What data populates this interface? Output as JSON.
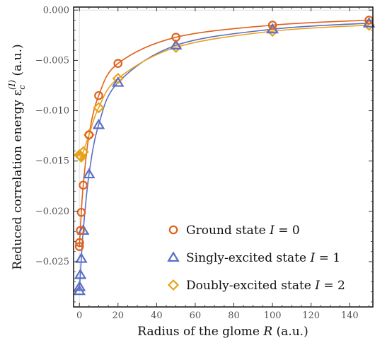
{
  "chart_data": {
    "type": "scatter",
    "title": "",
    "xlabel": "Radius of the glome R (a.u.)",
    "ylabel": "Reduced correlation energy ε_c^(I) (a.u.)",
    "ylabel_parts": {
      "pre": "Reduced correlation energy ε",
      "sub": "c",
      "sup": "(I)",
      "post": " (a.u.)"
    },
    "xlabel_parts": {
      "pre": "Radius of the glome ",
      "var": "R",
      "post": " (a.u.)"
    },
    "xlim": [
      -3,
      152
    ],
    "ylim": [
      -0.0295,
      0.0003
    ],
    "xticks": [
      0,
      20,
      40,
      60,
      80,
      100,
      120,
      140
    ],
    "xtick_labels": [
      "0",
      "20",
      "40",
      "60",
      "80",
      "100",
      "120",
      "140"
    ],
    "yticks": [
      0.0,
      -0.005,
      -0.01,
      -0.015,
      -0.02,
      -0.025
    ],
    "ytick_labels": [
      "0.000",
      "−0.005",
      "−0.010",
      "−0.015",
      "−0.020",
      "−0.025"
    ],
    "grid": true,
    "legend_position": "bottom-right",
    "series": [
      {
        "name": "Ground state I = 0",
        "legend_parts": {
          "pre": "Ground state ",
          "var": "I",
          "post": " = 0"
        },
        "color": "#e0621b",
        "marker": "circle",
        "x": [
          0.01,
          0.1,
          0.5,
          1,
          2,
          5,
          10,
          20,
          50,
          100,
          150
        ],
        "y": [
          -0.0235,
          -0.0231,
          -0.0219,
          -0.0201,
          -0.0174,
          -0.0124,
          -0.0085,
          -0.0053,
          -0.0027,
          -0.0015,
          -0.001
        ]
      },
      {
        "name": "Singly-excited state I = 1",
        "legend_parts": {
          "pre": "Singly-excited state ",
          "var": "I",
          "post": " = 1"
        },
        "color": "#5b6fc4",
        "marker": "triangle",
        "x": [
          0.01,
          0.1,
          0.5,
          1,
          2,
          5,
          10,
          20,
          50,
          100,
          150
        ],
        "y": [
          -0.0279,
          -0.0275,
          -0.0263,
          -0.0247,
          -0.0219,
          -0.0163,
          -0.0114,
          -0.0072,
          -0.0035,
          -0.0019,
          -0.0013
        ]
      },
      {
        "name": "Doubly-excited state I = 2",
        "legend_parts": {
          "pre": "Doubly-excited state ",
          "var": "I",
          "post": " = 2"
        },
        "color": "#e8a21a",
        "marker": "diamond",
        "x": [
          0.01,
          0.1,
          0.5,
          1,
          2,
          5,
          10,
          20,
          50,
          100,
          150
        ],
        "y": [
          -0.0144,
          -0.0144,
          -0.0145,
          -0.0146,
          -0.0141,
          -0.0124,
          -0.0097,
          -0.0068,
          -0.0037,
          -0.0021,
          -0.0015
        ]
      }
    ]
  }
}
